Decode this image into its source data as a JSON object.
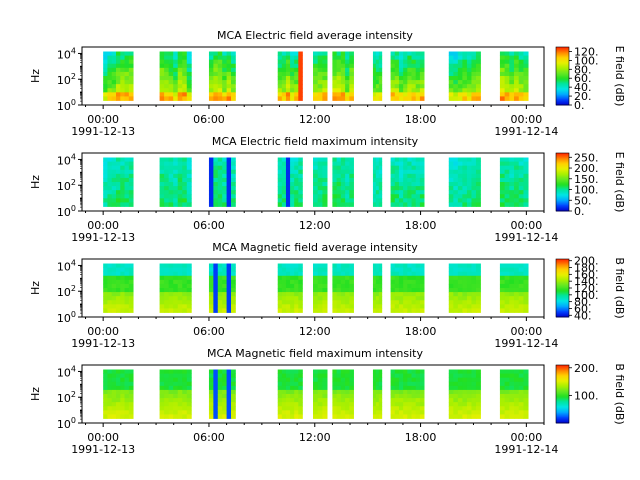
{
  "figure": {
    "background": "#ffffff"
  },
  "colormap": [
    "#0000cc",
    "#0044ff",
    "#00aaff",
    "#00e5e5",
    "#00e5a0",
    "#22e022",
    "#66e822",
    "#aaf000",
    "#e8f000",
    "#ffd000",
    "#ff8000",
    "#ff2000"
  ],
  "chart_data": [
    {
      "type": "heatmap",
      "title": "MCA  Electric field average intensity",
      "ylabel": "Hz",
      "yticks": [
        "10^4",
        "10^2",
        "10^0"
      ],
      "ylim_log10": [
        0,
        4.5
      ],
      "xticks": [
        {
          "time": "00:00",
          "date": "1991-12-13"
        },
        {
          "time": "06:00",
          "date": ""
        },
        {
          "time": "12:00",
          "date": ""
        },
        {
          "time": "18:00",
          "date": ""
        },
        {
          "time": "00:00",
          "date": "1991-12-14"
        }
      ],
      "xlim_hours": [
        -1.2,
        25
      ],
      "data_blocks_hours": [
        [
          0,
          1.7
        ],
        [
          3.2,
          5
        ],
        [
          6,
          7.5
        ],
        [
          9.9,
          11.3
        ],
        [
          11.9,
          12.7
        ],
        [
          13,
          14.2
        ],
        [
          15.3,
          15.8
        ],
        [
          16.3,
          18.2
        ],
        [
          19.6,
          21.4
        ],
        [
          22.5,
          24.1
        ]
      ],
      "colorbar": {
        "label": "E field (dB)",
        "ticks": [
          "120.",
          "100.",
          "80.",
          "60.",
          "40.",
          "20.",
          "0."
        ],
        "range": [
          0,
          130
        ]
      },
      "style": "average-electric"
    },
    {
      "type": "heatmap",
      "title": "MCA  Electric field maximum intensity",
      "ylabel": "Hz",
      "yticks": [
        "10^4",
        "10^2",
        "10^0"
      ],
      "ylim_log10": [
        0,
        4.5
      ],
      "xticks": [
        {
          "time": "00:00",
          "date": "1991-12-13"
        },
        {
          "time": "06:00",
          "date": ""
        },
        {
          "time": "12:00",
          "date": ""
        },
        {
          "time": "18:00",
          "date": ""
        },
        {
          "time": "00:00",
          "date": "1991-12-14"
        }
      ],
      "xlim_hours": [
        -1.2,
        25
      ],
      "data_blocks_hours": [
        [
          0,
          1.7
        ],
        [
          3.2,
          5
        ],
        [
          6,
          7.5
        ],
        [
          9.9,
          11.3
        ],
        [
          11.9,
          12.7
        ],
        [
          13,
          14.2
        ],
        [
          15.3,
          15.8
        ],
        [
          16.3,
          18.2
        ],
        [
          19.6,
          21.4
        ],
        [
          22.5,
          24.1
        ]
      ],
      "colorbar": {
        "label": "E field (dB)",
        "ticks": [
          "250.",
          "200.",
          "150.",
          "100.",
          "50.",
          "0."
        ],
        "range": [
          0,
          270
        ]
      },
      "style": "maximum-electric"
    },
    {
      "type": "heatmap",
      "title": "MCA  Magnetic field average intensity",
      "ylabel": "Hz",
      "yticks": [
        "10^4",
        "10^2",
        "10^0"
      ],
      "ylim_log10": [
        0,
        4.5
      ],
      "xticks": [
        {
          "time": "00:00",
          "date": "1991-12-13"
        },
        {
          "time": "06:00",
          "date": ""
        },
        {
          "time": "12:00",
          "date": ""
        },
        {
          "time": "18:00",
          "date": ""
        },
        {
          "time": "00:00",
          "date": "1991-12-14"
        }
      ],
      "xlim_hours": [
        -1.2,
        25
      ],
      "data_blocks_hours": [
        [
          0,
          1.7
        ],
        [
          3.2,
          5
        ],
        [
          6,
          7.5
        ],
        [
          9.9,
          11.3
        ],
        [
          11.9,
          12.7
        ],
        [
          13,
          14.2
        ],
        [
          15.3,
          15.8
        ],
        [
          16.3,
          18.2
        ],
        [
          19.6,
          21.4
        ],
        [
          22.5,
          24.1
        ]
      ],
      "colorbar": {
        "label": "B field (dB)",
        "ticks": [
          "200.",
          "180.",
          "160.",
          "140.",
          "120.",
          "100.",
          "80.",
          "60.",
          "40."
        ],
        "range": [
          35,
          205
        ]
      },
      "style": "average-magnetic"
    },
    {
      "type": "heatmap",
      "title": "MCA  Magnetic field maximum intensity",
      "ylabel": "Hz",
      "yticks": [
        "10^4",
        "10^2",
        "10^0"
      ],
      "ylim_log10": [
        0,
        4.5
      ],
      "xticks": [
        {
          "time": "00:00",
          "date": "1991-12-13"
        },
        {
          "time": "06:00",
          "date": ""
        },
        {
          "time": "12:00",
          "date": ""
        },
        {
          "time": "18:00",
          "date": ""
        },
        {
          "time": "00:00",
          "date": "1991-12-14"
        }
      ],
      "xlim_hours": [
        -1.2,
        25
      ],
      "data_blocks_hours": [
        [
          0,
          1.7
        ],
        [
          3.2,
          5
        ],
        [
          6,
          7.5
        ],
        [
          9.9,
          11.3
        ],
        [
          11.9,
          12.7
        ],
        [
          13,
          14.2
        ],
        [
          15.3,
          15.8
        ],
        [
          16.3,
          18.2
        ],
        [
          19.6,
          21.4
        ],
        [
          22.5,
          24.1
        ]
      ],
      "colorbar": {
        "label": "B field (dB)",
        "ticks": [
          "200.",
          "100."
        ],
        "range": [
          0,
          210
        ]
      },
      "style": "maximum-magnetic"
    }
  ]
}
